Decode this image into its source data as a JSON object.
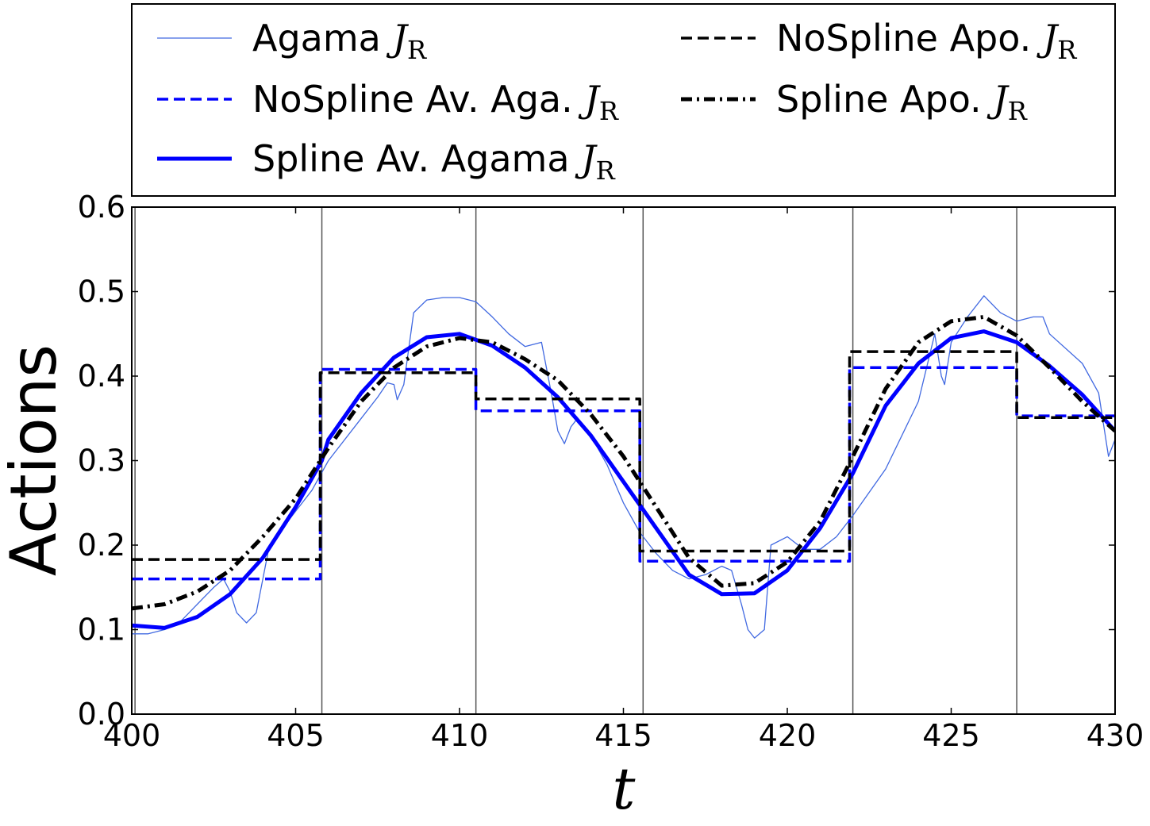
{
  "chart_data": {
    "type": "line",
    "xlabel": "t",
    "ylabel": "Actions",
    "xlim": [
      400,
      430
    ],
    "ylim": [
      0.0,
      0.6
    ],
    "xticks": [
      "400",
      "405",
      "410",
      "415",
      "420",
      "425",
      "430"
    ],
    "yticks": [
      "0.0",
      "0.1",
      "0.2",
      "0.3",
      "0.4",
      "0.5",
      "0.6"
    ],
    "grid": false,
    "legend_placement": "top (outside, above axes)",
    "vlines": [
      400.1,
      405.8,
      410.5,
      415.6,
      422.0,
      427.0
    ],
    "series": [
      {
        "name": "Agama J_R",
        "legend": {
          "text": "Agama ",
          "sym": "J",
          "sub": "R"
        },
        "color": "#4169e1",
        "style": "solid-thin",
        "x": [
          400.0,
          400.5,
          401.0,
          401.5,
          402.0,
          402.5,
          402.8,
          403.0,
          403.2,
          403.5,
          403.8,
          404.2,
          405.0,
          405.5,
          406.0,
          407.0,
          407.5,
          407.8,
          408.0,
          408.1,
          408.3,
          408.6,
          409.0,
          409.5,
          410.0,
          410.5,
          411.0,
          411.5,
          412.0,
          412.5,
          412.8,
          413.0,
          413.2,
          413.4,
          413.6,
          414.0,
          414.5,
          415.0,
          415.5,
          416.0,
          416.5,
          417.0,
          417.5,
          418.0,
          418.3,
          418.6,
          418.8,
          419.0,
          419.3,
          419.5,
          420.0,
          420.5,
          421.0,
          421.5,
          422.0,
          423.0,
          424.0,
          424.5,
          424.7,
          424.8,
          425.0,
          425.5,
          426.0,
          426.5,
          427.0,
          427.5,
          427.8,
          428.0,
          429.0,
          429.5,
          429.8,
          430.0
        ],
        "y": [
          0.095,
          0.095,
          0.1,
          0.11,
          0.13,
          0.15,
          0.16,
          0.145,
          0.12,
          0.108,
          0.12,
          0.2,
          0.24,
          0.265,
          0.3,
          0.35,
          0.375,
          0.392,
          0.39,
          0.372,
          0.39,
          0.475,
          0.49,
          0.493,
          0.493,
          0.488,
          0.47,
          0.45,
          0.435,
          0.44,
          0.38,
          0.335,
          0.32,
          0.34,
          0.35,
          0.33,
          0.295,
          0.25,
          0.215,
          0.19,
          0.17,
          0.16,
          0.165,
          0.175,
          0.17,
          0.13,
          0.1,
          0.09,
          0.1,
          0.2,
          0.21,
          0.195,
          0.195,
          0.21,
          0.235,
          0.29,
          0.37,
          0.45,
          0.4,
          0.39,
          0.44,
          0.47,
          0.495,
          0.475,
          0.465,
          0.47,
          0.47,
          0.45,
          0.415,
          0.38,
          0.305,
          0.325
        ]
      },
      {
        "name": "NoSpline Av. Aga. J_R",
        "legend": {
          "text": "NoSpline Av. Aga. ",
          "sym": "J",
          "sub": "R"
        },
        "color": "#0000ff",
        "style": "dashed",
        "x": [
          400.0,
          405.75,
          405.75,
          410.5,
          410.5,
          415.5,
          415.5,
          421.9,
          421.9,
          427.0,
          427.0,
          430.0
        ],
        "y": [
          0.16,
          0.16,
          0.408,
          0.408,
          0.359,
          0.359,
          0.181,
          0.181,
          0.41,
          0.41,
          0.353,
          0.353
        ]
      },
      {
        "name": "Spline Av. Agama J_R",
        "legend": {
          "text": "Spline Av. Agama ",
          "sym": "J",
          "sub": "R"
        },
        "color": "#0000ff",
        "style": "solid-thick",
        "x": [
          400,
          401,
          402,
          403,
          404,
          405,
          405.8,
          406,
          407,
          408,
          409,
          410,
          411,
          412,
          413,
          414,
          415,
          416,
          417,
          418,
          419,
          420,
          421,
          422,
          423,
          424,
          425,
          426,
          427,
          428,
          429,
          430
        ],
        "y": [
          0.105,
          0.102,
          0.115,
          0.142,
          0.185,
          0.245,
          0.3,
          0.325,
          0.38,
          0.422,
          0.446,
          0.45,
          0.436,
          0.41,
          0.375,
          0.33,
          0.275,
          0.22,
          0.165,
          0.142,
          0.143,
          0.17,
          0.22,
          0.285,
          0.365,
          0.415,
          0.445,
          0.453,
          0.44,
          0.412,
          0.378,
          0.335
        ]
      },
      {
        "name": "NoSpline Apo. J_R",
        "legend": {
          "text": "NoSpline Apo. ",
          "sym": "J",
          "sub": "R"
        },
        "color": "#000000",
        "style": "dashed",
        "x": [
          400.0,
          405.75,
          405.75,
          410.5,
          410.5,
          415.5,
          415.5,
          421.9,
          421.9,
          427.0,
          427.0,
          430.0
        ],
        "y": [
          0.183,
          0.183,
          0.404,
          0.404,
          0.373,
          0.373,
          0.193,
          0.193,
          0.429,
          0.429,
          0.351,
          0.351
        ]
      },
      {
        "name": "Spline Apo. J_R",
        "legend": {
          "text": "Spline Apo. ",
          "sym": "J",
          "sub": "R"
        },
        "color": "#000000",
        "style": "dashdot",
        "x": [
          400,
          401,
          402,
          403,
          404,
          405,
          406,
          407,
          408,
          409,
          410,
          411,
          412,
          413,
          414,
          415,
          416,
          417,
          418,
          419,
          420,
          421,
          422,
          423,
          424,
          425,
          426,
          427,
          428,
          429,
          430
        ],
        "y": [
          0.125,
          0.13,
          0.145,
          0.17,
          0.21,
          0.255,
          0.315,
          0.37,
          0.41,
          0.435,
          0.445,
          0.44,
          0.42,
          0.395,
          0.355,
          0.305,
          0.245,
          0.185,
          0.152,
          0.155,
          0.18,
          0.228,
          0.305,
          0.385,
          0.44,
          0.465,
          0.47,
          0.448,
          0.41,
          0.37,
          0.335
        ]
      }
    ]
  }
}
